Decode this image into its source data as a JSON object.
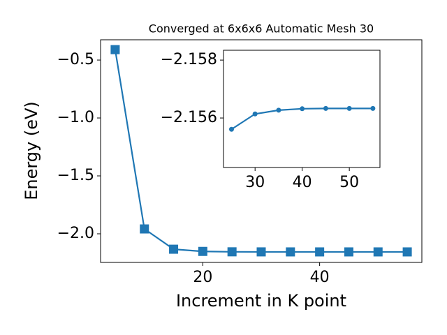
{
  "chart_data": [
    {
      "type": "line",
      "title": "Converged at 6x6x6 Automatic Mesh 30",
      "xlabel": "Increment in K point",
      "ylabel": "Energy (eV)",
      "marker": "square",
      "color": "#1f77b4",
      "x": [
        5,
        10,
        15,
        20,
        25,
        30,
        35,
        40,
        45,
        50,
        55
      ],
      "values": [
        -0.41,
        -1.958,
        -2.133,
        -2.152,
        -2.1556,
        -2.1561,
        -2.1563,
        -2.1563,
        -2.1563,
        -2.1563,
        -2.1563
      ],
      "xlim": [
        2.5,
        57.5
      ],
      "xticks": [
        20,
        40
      ],
      "ylim": [
        -2.247,
        -0.325
      ],
      "yticks": [
        {
          "value": -2.0,
          "label": "−2.0"
        },
        {
          "value": -1.5,
          "label": "−1.5"
        },
        {
          "value": -1.0,
          "label": "−1.0"
        },
        {
          "value": -0.5,
          "label": "−0.5"
        }
      ]
    },
    {
      "type": "line",
      "marker": "circle",
      "color": "#1f77b4",
      "x": [
        25,
        30,
        35,
        40,
        45,
        50,
        55
      ],
      "values": [
        -2.15561,
        -2.15614,
        -2.15627,
        -2.15632,
        -2.15633,
        -2.15633,
        -2.15633
      ],
      "xlim": [
        23.3,
        56.5
      ],
      "xticks": [
        30,
        40,
        50
      ],
      "ylim": [
        -2.15429,
        -2.15834
      ],
      "yticks": [
        {
          "value": -2.156,
          "label": "−2.156"
        },
        {
          "value": -2.158,
          "label": "−2.158"
        }
      ]
    }
  ]
}
